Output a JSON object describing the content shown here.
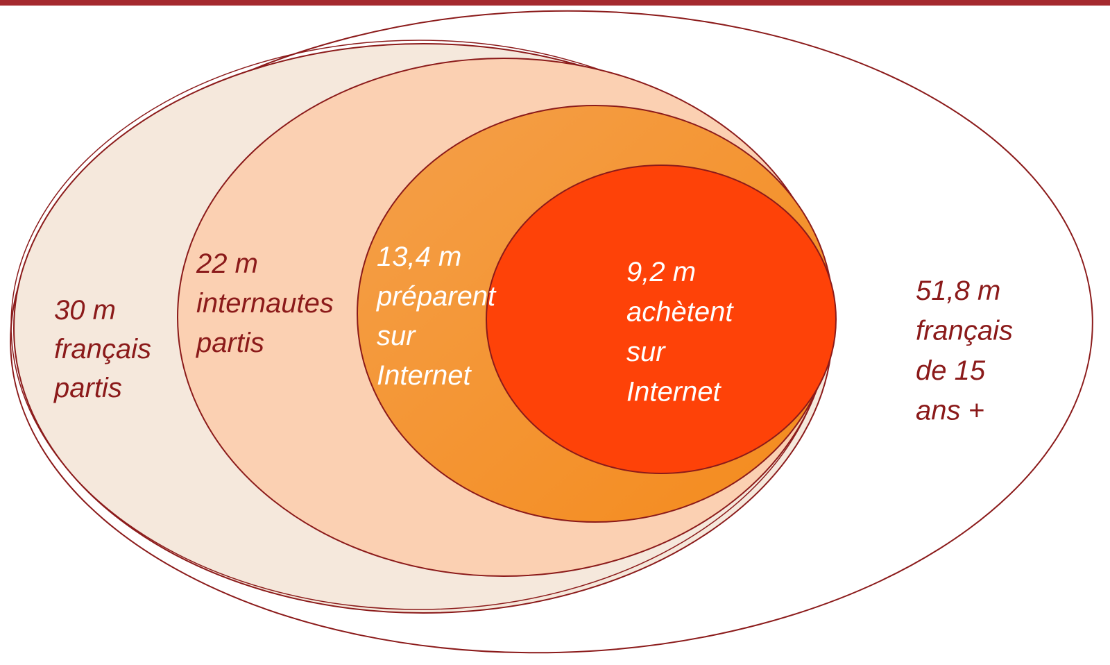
{
  "sets": [
    {
      "lines": [
        "51,8 m",
        "français",
        "de 15",
        "ans +"
      ]
    },
    {
      "lines": [
        "30 m",
        "français",
        "partis"
      ]
    },
    {
      "lines": [
        "22 m",
        "internautes",
        "partis"
      ]
    },
    {
      "lines": [
        "13,4 m",
        "préparent",
        "sur",
        "Internet"
      ]
    },
    {
      "lines": [
        "9,2 m",
        "achètent",
        "sur",
        "Internet"
      ]
    }
  ]
}
